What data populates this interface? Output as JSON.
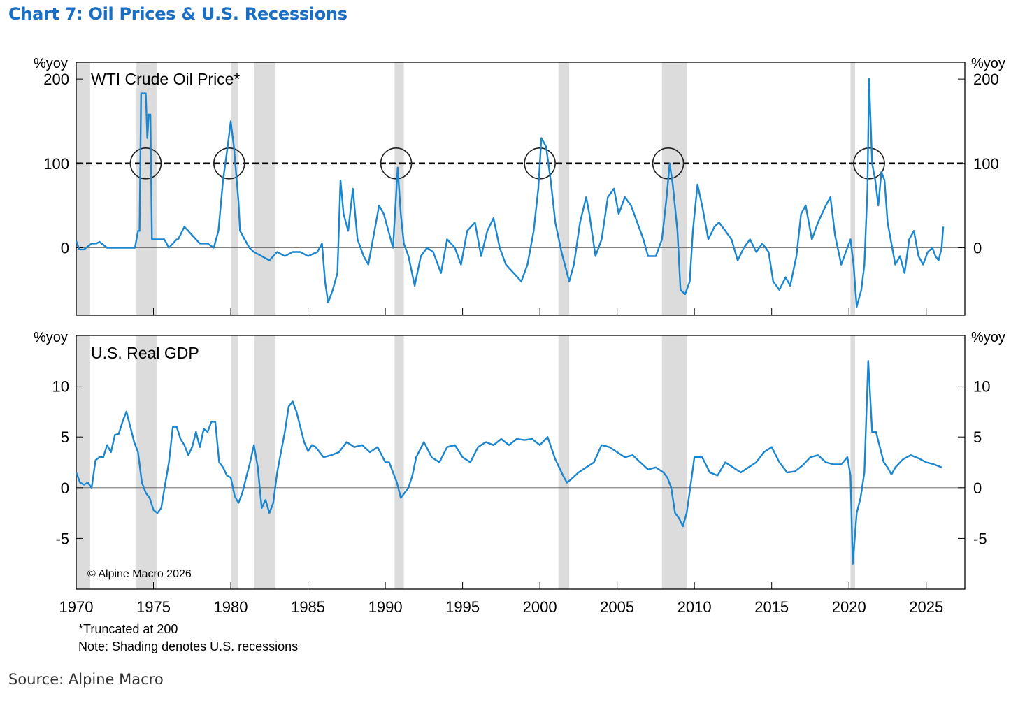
{
  "title": "Chart 7: Oil Prices & U.S. Recessions",
  "source": "Source: Alpine Macro",
  "footnote1": "*Truncated at 200",
  "footnote2": "Note: Shading denotes U.S. recessions",
  "copyright": "© Alpine Macro 2026",
  "colors": {
    "line": "#1a86d0",
    "shade": "#dcdcdc",
    "title": "#1a6fc4"
  },
  "x_axis": {
    "min": 1970,
    "max": 2027.5,
    "ticks": [
      1970,
      1975,
      1980,
      1985,
      1990,
      1995,
      2000,
      2005,
      2010,
      2015,
      2020,
      2025
    ]
  },
  "recessions": [
    [
      1970.0,
      1970.9
    ],
    [
      1973.9,
      1975.2
    ],
    [
      1980.0,
      1980.5
    ],
    [
      1981.5,
      1982.9
    ],
    [
      1990.6,
      1991.2
    ],
    [
      2001.2,
      2001.9
    ],
    [
      2007.9,
      2009.5
    ],
    [
      2020.1,
      2020.4
    ]
  ],
  "chart_data": [
    {
      "type": "line",
      "title": "WTI Crude Oil Price*",
      "ylabel": "%yoy",
      "ylim": [
        -80,
        220
      ],
      "yticks": [
        0,
        100,
        200
      ],
      "reference_line": 100,
      "circles_x": [
        1974.5,
        1979.9,
        1990.7,
        2000.0,
        2008.3,
        2021.3
      ],
      "series": [
        {
          "x": [
            1970.0,
            1970.2,
            1970.5,
            1971.0,
            1971.3,
            1971.5,
            1972.0,
            1972.5,
            1972.9,
            1973.0,
            1973.5,
            1973.8,
            1974.0,
            1974.1,
            1974.2,
            1974.3,
            1974.5,
            1974.6,
            1974.7,
            1974.8,
            1974.9,
            1975.0,
            1975.3,
            1975.7,
            1976.0,
            1976.5,
            1976.6,
            1977.0,
            1977.5,
            1978.0,
            1978.5,
            1978.9,
            1979.2,
            1979.5,
            1979.8,
            1980.0,
            1980.2,
            1980.5,
            1980.6,
            1980.9,
            1981.2,
            1981.5,
            1982.0,
            1982.5,
            1983.0,
            1983.5,
            1984.0,
            1984.5,
            1985.0,
            1985.6,
            1985.9,
            1986.1,
            1986.3,
            1986.6,
            1986.9,
            1987.1,
            1987.3,
            1987.6,
            1987.9,
            1988.2,
            1988.6,
            1988.9,
            1989.3,
            1989.6,
            1989.9,
            1990.2,
            1990.5,
            1990.8,
            1991.0,
            1991.2,
            1991.5,
            1991.9,
            1992.3,
            1992.7,
            1993.1,
            1993.6,
            1994.0,
            1994.5,
            1994.9,
            1995.3,
            1995.8,
            1996.2,
            1996.6,
            1997.0,
            1997.4,
            1997.8,
            1998.3,
            1998.8,
            1999.2,
            1999.6,
            1999.9,
            2000.1,
            2000.4,
            2000.7,
            2001.0,
            2001.4,
            2001.9,
            2002.2,
            2002.6,
            2003.0,
            2003.2,
            2003.6,
            2004.0,
            2004.4,
            2004.8,
            2005.1,
            2005.5,
            2005.9,
            2006.3,
            2006.7,
            2007.0,
            2007.5,
            2007.9,
            2008.2,
            2008.4,
            2008.6,
            2008.9,
            2009.1,
            2009.4,
            2009.7,
            2009.9,
            2010.2,
            2010.5,
            2010.9,
            2011.3,
            2011.6,
            2012.0,
            2012.4,
            2012.8,
            2013.2,
            2013.6,
            2014.0,
            2014.4,
            2014.8,
            2015.1,
            2015.5,
            2015.9,
            2016.2,
            2016.6,
            2016.9,
            2017.2,
            2017.6,
            2018.0,
            2018.5,
            2018.8,
            2019.1,
            2019.5,
            2019.9,
            2020.1,
            2020.3,
            2020.5,
            2020.8,
            2021.0,
            2021.2,
            2021.3,
            2021.5,
            2021.7,
            2021.9,
            2022.1,
            2022.3,
            2022.5,
            2022.8,
            2023.0,
            2023.3,
            2023.6,
            2023.9,
            2024.2,
            2024.5,
            2024.8,
            2025.1,
            2025.4,
            2025.6,
            2025.8,
            2026.0,
            2026.1
          ],
          "y": [
            8,
            -2,
            -2,
            5,
            5,
            7,
            0,
            0,
            0,
            0,
            0,
            0,
            20,
            20,
            183,
            183,
            183,
            130,
            158,
            158,
            10,
            10,
            10,
            10,
            0,
            10,
            10,
            25,
            15,
            5,
            5,
            0,
            20,
            80,
            120,
            150,
            120,
            55,
            20,
            10,
            0,
            -5,
            -10,
            -15,
            -5,
            -10,
            -5,
            -5,
            -10,
            -5,
            5,
            -40,
            -65,
            -50,
            -30,
            80,
            40,
            20,
            70,
            10,
            -10,
            -20,
            20,
            50,
            40,
            20,
            0,
            95,
            40,
            5,
            -10,
            -45,
            -10,
            0,
            -5,
            -30,
            10,
            0,
            -20,
            20,
            30,
            -10,
            20,
            35,
            0,
            -20,
            -30,
            -40,
            -20,
            20,
            70,
            130,
            120,
            80,
            30,
            -5,
            -40,
            -20,
            30,
            60,
            40,
            -10,
            10,
            60,
            70,
            40,
            60,
            50,
            30,
            10,
            -10,
            -10,
            10,
            60,
            100,
            75,
            20,
            -50,
            -55,
            -40,
            20,
            75,
            50,
            10,
            25,
            30,
            20,
            10,
            -15,
            0,
            10,
            -5,
            5,
            -5,
            -40,
            -50,
            -35,
            -45,
            -10,
            40,
            50,
            10,
            30,
            50,
            60,
            15,
            -20,
            0,
            10,
            -20,
            -70,
            -50,
            -20,
            70,
            200,
            100,
            80,
            50,
            90,
            80,
            30,
            0,
            -20,
            -10,
            -30,
            10,
            20,
            -10,
            -20,
            -5,
            0,
            -10,
            -15,
            0,
            25
          ]
        }
      ]
    },
    {
      "type": "line",
      "title": "U.S. Real GDP",
      "ylabel": "%yoy",
      "ylim": [
        -10,
        15
      ],
      "yticks": [
        -5,
        0,
        5,
        10
      ],
      "series": [
        {
          "x": [
            1970.0,
            1970.25,
            1970.5,
            1970.75,
            1971.0,
            1971.25,
            1971.5,
            1971.75,
            1972.0,
            1972.25,
            1972.5,
            1972.75,
            1973.0,
            1973.25,
            1973.5,
            1973.75,
            1974.0,
            1974.25,
            1974.5,
            1974.75,
            1975.0,
            1975.25,
            1975.5,
            1975.75,
            1976.0,
            1976.25,
            1976.5,
            1976.75,
            1977.0,
            1977.25,
            1977.5,
            1977.75,
            1978.0,
            1978.25,
            1978.5,
            1978.75,
            1979.0,
            1979.25,
            1979.5,
            1979.75,
            1980.0,
            1980.25,
            1980.5,
            1980.75,
            1981.0,
            1981.25,
            1981.5,
            1981.75,
            1982.0,
            1982.25,
            1982.5,
            1982.75,
            1983.0,
            1983.25,
            1983.5,
            1983.75,
            1984.0,
            1984.25,
            1984.5,
            1984.75,
            1985.0,
            1985.25,
            1985.5,
            1985.75,
            1986.0,
            1986.5,
            1987.0,
            1987.5,
            1988.0,
            1988.5,
            1989.0,
            1989.5,
            1990.0,
            1990.25,
            1990.5,
            1990.75,
            1991.0,
            1991.25,
            1991.5,
            1991.75,
            1992.0,
            1992.5,
            1993.0,
            1993.5,
            1994.0,
            1994.5,
            1995.0,
            1995.5,
            1996.0,
            1996.5,
            1997.0,
            1997.5,
            1998.0,
            1998.5,
            1999.0,
            1999.5,
            2000.0,
            2000.5,
            2001.0,
            2001.5,
            2001.75,
            2002.0,
            2002.5,
            2003.0,
            2003.5,
            2004.0,
            2004.5,
            2005.0,
            2005.5,
            2006.0,
            2006.5,
            2007.0,
            2007.5,
            2008.0,
            2008.25,
            2008.5,
            2008.75,
            2009.0,
            2009.25,
            2009.5,
            2009.75,
            2010.0,
            2010.5,
            2011.0,
            2011.5,
            2012.0,
            2012.5,
            2013.0,
            2013.5,
            2014.0,
            2014.5,
            2015.0,
            2015.5,
            2016.0,
            2016.5,
            2017.0,
            2017.5,
            2018.0,
            2018.5,
            2019.0,
            2019.5,
            2019.9,
            2020.1,
            2020.25,
            2020.5,
            2020.75,
            2021.0,
            2021.25,
            2021.5,
            2021.75,
            2022.0,
            2022.25,
            2022.5,
            2022.75,
            2023.0,
            2023.5,
            2024.0,
            2024.5,
            2025.0,
            2025.5,
            2026.0
          ],
          "y": [
            1.5,
            0.5,
            0.3,
            0.5,
            0.0,
            2.7,
            3.0,
            3.0,
            4.2,
            3.5,
            5.2,
            5.3,
            6.5,
            7.5,
            6.0,
            4.5,
            3.5,
            0.5,
            -0.5,
            -1.0,
            -2.2,
            -2.5,
            -2.0,
            0.3,
            2.5,
            6.0,
            6.0,
            4.8,
            4.2,
            3.2,
            4.0,
            5.5,
            4.0,
            5.8,
            5.5,
            6.5,
            6.5,
            2.5,
            2.0,
            1.2,
            1.0,
            -0.8,
            -1.5,
            -0.5,
            1.0,
            2.5,
            4.2,
            2.0,
            -2.0,
            -1.2,
            -2.5,
            -1.5,
            1.5,
            3.5,
            5.5,
            8.0,
            8.5,
            7.5,
            6.0,
            4.5,
            3.6,
            4.2,
            4.0,
            3.5,
            3.0,
            3.2,
            3.5,
            4.5,
            4.0,
            4.2,
            3.5,
            4.0,
            2.5,
            2.5,
            1.5,
            0.5,
            -1.0,
            -0.5,
            0.0,
            1.2,
            3.0,
            4.5,
            3.0,
            2.5,
            4.0,
            4.2,
            3.0,
            2.5,
            4.0,
            4.5,
            4.2,
            4.8,
            4.2,
            4.8,
            4.7,
            4.8,
            4.2,
            5.0,
            2.8,
            1.2,
            0.5,
            0.8,
            1.5,
            2.0,
            2.5,
            4.2,
            4.0,
            3.5,
            3.0,
            3.2,
            2.5,
            1.8,
            2.0,
            1.5,
            1.0,
            0.0,
            -2.5,
            -3.0,
            -3.8,
            -2.5,
            0.2,
            3.0,
            3.0,
            1.5,
            1.2,
            2.5,
            2.0,
            1.5,
            2.0,
            2.5,
            3.5,
            4.0,
            2.5,
            1.5,
            1.6,
            2.2,
            3.0,
            3.2,
            2.5,
            2.3,
            2.3,
            3.0,
            1.2,
            -7.5,
            -2.5,
            -1.0,
            1.5,
            12.5,
            5.5,
            5.5,
            4.0,
            2.5,
            2.0,
            1.3,
            2.0,
            2.8,
            3.2,
            2.9,
            2.5,
            2.3,
            2.0
          ]
        }
      ]
    }
  ]
}
